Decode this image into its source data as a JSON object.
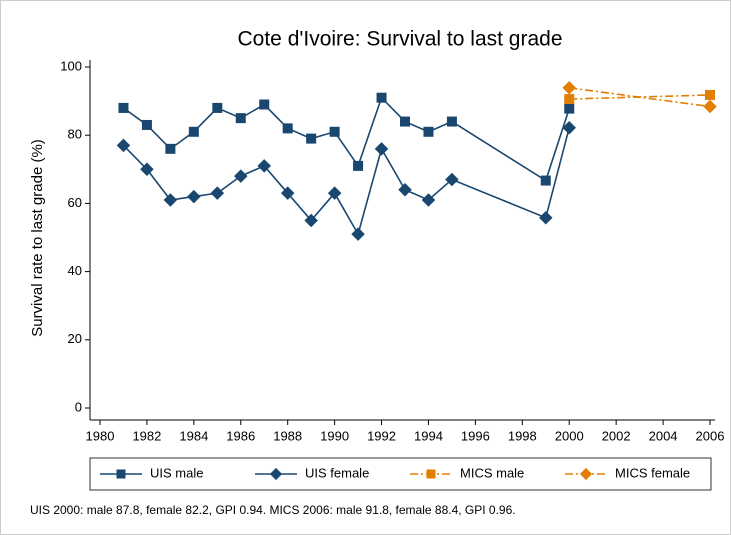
{
  "chart_data": {
    "type": "line",
    "title": "Cote d'Ivoire: Survival to last grade",
    "ylabel": "Survival rate to last grade (%)",
    "note": "UIS 2000: male 87.8, female 82.2, GPI 0.94. MICS 2006: male 91.8, female 88.4, GPI 0.96.",
    "x": [
      1981,
      1982,
      1983,
      1984,
      1985,
      1986,
      1987,
      1988,
      1989,
      1990,
      1991,
      1992,
      1993,
      1994,
      1995,
      1999,
      2000,
      2006
    ],
    "series": [
      {
        "name": "UIS male",
        "color": "#1a476f",
        "marker": "square",
        "dash": "solid",
        "values": [
          88,
          83,
          76,
          81,
          88,
          85,
          89,
          82,
          79,
          81,
          71,
          91,
          84,
          81,
          84,
          66.7,
          87.8,
          null
        ]
      },
      {
        "name": "UIS female",
        "color": "#1a476f",
        "marker": "diamond",
        "dash": "solid",
        "values": [
          77,
          70,
          61,
          62,
          63,
          68,
          71,
          63,
          55,
          63,
          51,
          76,
          64,
          61,
          67,
          55.8,
          82.2,
          null
        ]
      },
      {
        "name": "MICS male",
        "color": "#e37e00",
        "marker": "square",
        "dash": "dashdot",
        "values": [
          null,
          null,
          null,
          null,
          null,
          null,
          null,
          null,
          null,
          null,
          null,
          null,
          null,
          null,
          null,
          null,
          90.6,
          91.8
        ]
      },
      {
        "name": "MICS female",
        "color": "#e37e00",
        "marker": "diamond",
        "dash": "dashdot",
        "values": [
          null,
          null,
          null,
          null,
          null,
          null,
          null,
          null,
          null,
          null,
          null,
          null,
          null,
          null,
          null,
          null,
          93.9,
          88.4
        ]
      }
    ],
    "xlim": [
      1980,
      2006
    ],
    "xticks": [
      1980,
      1982,
      1984,
      1986,
      1988,
      1990,
      1992,
      1994,
      1996,
      1998,
      2000,
      2002,
      2004,
      2006
    ],
    "ylim": [
      0,
      100
    ],
    "yticks": [
      0,
      20,
      40,
      60,
      80,
      100
    ],
    "grid": false,
    "legend": "bottom"
  }
}
